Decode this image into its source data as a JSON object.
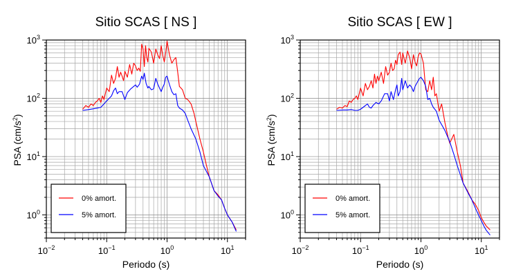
{
  "chart_data": [
    {
      "type": "line",
      "title": "Sitio SCAS [ NS ]",
      "xlabel": "Periodo (s)",
      "ylabel": "PSA (cm/s²)",
      "xscale": "log",
      "yscale": "log",
      "xlim": [
        0.01,
        20
      ],
      "ylim": [
        0.4,
        1000
      ],
      "x_ticks": [
        {
          "value": 0.01,
          "base": "10",
          "exp": "−2"
        },
        {
          "value": 0.1,
          "base": "10",
          "exp": "−1"
        },
        {
          "value": 1,
          "base": "10",
          "exp": "0"
        },
        {
          "value": 10,
          "base": "10",
          "exp": "1"
        }
      ],
      "y_ticks": [
        {
          "value": 1,
          "base": "10",
          "exp": "0"
        },
        {
          "value": 10,
          "base": "10",
          "exp": "1"
        },
        {
          "value": 100,
          "base": "10",
          "exp": "2"
        },
        {
          "value": 1000,
          "base": "10",
          "exp": "3"
        }
      ],
      "grid": true,
      "legend_position": "bottom-left",
      "series": [
        {
          "name": "0% amort.",
          "color": "#ff0000",
          "x": [
            0.04,
            0.045,
            0.05,
            0.055,
            0.06,
            0.065,
            0.07,
            0.075,
            0.08,
            0.085,
            0.09,
            0.095,
            0.1,
            0.11,
            0.12,
            0.13,
            0.14,
            0.15,
            0.16,
            0.17,
            0.18,
            0.19,
            0.2,
            0.22,
            0.24,
            0.26,
            0.28,
            0.3,
            0.32,
            0.34,
            0.36,
            0.38,
            0.4,
            0.42,
            0.44,
            0.46,
            0.48,
            0.5,
            0.55,
            0.6,
            0.65,
            0.7,
            0.75,
            0.8,
            0.85,
            0.9,
            0.95,
            1.0,
            1.05,
            1.1,
            1.2,
            1.3,
            1.4,
            1.5,
            1.6,
            1.7,
            1.8,
            2.0,
            2.2,
            2.5,
            2.8,
            3.0,
            3.5,
            4.0,
            4.5,
            5.0,
            6.0,
            7.0,
            8.0,
            9.0,
            10.0,
            12.0,
            14.0
          ],
          "y": [
            65,
            75,
            70,
            80,
            75,
            85,
            90,
            100,
            85,
            110,
            95,
            120,
            150,
            130,
            250,
            180,
            220,
            350,
            230,
            280,
            240,
            200,
            290,
            230,
            380,
            260,
            400,
            360,
            300,
            330,
            290,
            850,
            700,
            350,
            800,
            500,
            420,
            720,
            620,
            400,
            700,
            560,
            480,
            800,
            540,
            420,
            600,
            960,
            720,
            550,
            400,
            460,
            500,
            280,
            160,
            150,
            140,
            100,
            95,
            80,
            55,
            40,
            20,
            12,
            7,
            4.5,
            2.6,
            2.2,
            1.8,
            1.3,
            1.0,
            0.75,
            0.55
          ]
        },
        {
          "name": "5% amort.",
          "color": "#0000ff",
          "x": [
            0.04,
            0.05,
            0.06,
            0.07,
            0.08,
            0.09,
            0.1,
            0.11,
            0.12,
            0.13,
            0.14,
            0.15,
            0.16,
            0.18,
            0.2,
            0.22,
            0.25,
            0.28,
            0.3,
            0.32,
            0.35,
            0.38,
            0.4,
            0.42,
            0.45,
            0.48,
            0.5,
            0.55,
            0.6,
            0.65,
            0.7,
            0.75,
            0.8,
            0.85,
            0.9,
            0.95,
            1.0,
            1.05,
            1.1,
            1.2,
            1.3,
            1.4,
            1.5,
            1.6,
            1.8,
            2.0,
            2.2,
            2.5,
            3.0,
            3.5,
            4.0,
            5.0,
            6.0,
            7.0,
            8.0,
            9.0,
            10.0,
            12.0,
            14.0
          ],
          "y": [
            62,
            64,
            66,
            68,
            70,
            80,
            90,
            100,
            110,
            135,
            150,
            120,
            130,
            130,
            95,
            125,
            145,
            160,
            170,
            155,
            175,
            240,
            210,
            270,
            180,
            150,
            160,
            140,
            145,
            220,
            175,
            150,
            130,
            155,
            175,
            230,
            240,
            200,
            170,
            130,
            115,
            120,
            75,
            68,
            63,
            55,
            42,
            30,
            20,
            12,
            7,
            4.5,
            2.6,
            2.1,
            1.8,
            1.3,
            1.0,
            0.75,
            0.52
          ]
        }
      ]
    },
    {
      "type": "line",
      "title": "Sitio SCAS [ EW ]",
      "xlabel": "Periodo (s)",
      "ylabel": "PSA (cm/s²)",
      "xscale": "log",
      "yscale": "log",
      "xlim": [
        0.01,
        20
      ],
      "ylim": [
        0.4,
        1000
      ],
      "x_ticks": [
        {
          "value": 0.01,
          "base": "10",
          "exp": "−2"
        },
        {
          "value": 0.1,
          "base": "10",
          "exp": "−1"
        },
        {
          "value": 1,
          "base": "10",
          "exp": "0"
        },
        {
          "value": 10,
          "base": "10",
          "exp": "1"
        }
      ],
      "y_ticks": [
        {
          "value": 1,
          "base": "10",
          "exp": "0"
        },
        {
          "value": 10,
          "base": "10",
          "exp": "1"
        },
        {
          "value": 100,
          "base": "10",
          "exp": "2"
        },
        {
          "value": 1000,
          "base": "10",
          "exp": "3"
        }
      ],
      "grid": true,
      "legend_position": "bottom-left",
      "series": [
        {
          "name": "0% amort.",
          "color": "#ff0000",
          "x": [
            0.04,
            0.045,
            0.05,
            0.055,
            0.06,
            0.065,
            0.07,
            0.075,
            0.08,
            0.085,
            0.09,
            0.1,
            0.11,
            0.12,
            0.13,
            0.14,
            0.15,
            0.16,
            0.17,
            0.18,
            0.19,
            0.2,
            0.22,
            0.24,
            0.26,
            0.28,
            0.3,
            0.32,
            0.34,
            0.36,
            0.38,
            0.4,
            0.42,
            0.45,
            0.48,
            0.5,
            0.55,
            0.6,
            0.65,
            0.7,
            0.75,
            0.8,
            0.85,
            0.9,
            0.95,
            1.0,
            1.1,
            1.2,
            1.3,
            1.4,
            1.5,
            1.6,
            1.7,
            1.8,
            2.0,
            2.2,
            2.5,
            2.8,
            3.0,
            3.5,
            4.0,
            4.5,
            5.0,
            6.0,
            7.0,
            8.0,
            9.0,
            10.0,
            11.0,
            12.0,
            14.0
          ],
          "y": [
            65,
            70,
            68,
            75,
            72,
            90,
            85,
            95,
            100,
            110,
            95,
            150,
            110,
            180,
            140,
            160,
            200,
            150,
            260,
            180,
            240,
            200,
            280,
            180,
            350,
            250,
            280,
            400,
            300,
            320,
            450,
            380,
            560,
            620,
            380,
            600,
            400,
            650,
            500,
            320,
            560,
            420,
            360,
            520,
            600,
            580,
            400,
            140,
            130,
            200,
            140,
            230,
            110,
            120,
            60,
            80,
            38,
            22,
            17,
            24,
            12,
            7,
            3.5,
            2.5,
            1.8,
            1.5,
            1.2,
            0.9,
            0.75,
            0.65,
            0.55
          ]
        },
        {
          "name": "5% amort.",
          "color": "#0000ff",
          "x": [
            0.04,
            0.05,
            0.06,
            0.07,
            0.08,
            0.09,
            0.1,
            0.11,
            0.12,
            0.13,
            0.14,
            0.15,
            0.16,
            0.18,
            0.2,
            0.22,
            0.25,
            0.28,
            0.3,
            0.32,
            0.35,
            0.38,
            0.4,
            0.42,
            0.45,
            0.48,
            0.5,
            0.55,
            0.6,
            0.65,
            0.7,
            0.75,
            0.8,
            0.85,
            0.9,
            0.95,
            1.0,
            1.1,
            1.2,
            1.3,
            1.4,
            1.5,
            1.6,
            1.8,
            2.0,
            2.5,
            3.0,
            3.5,
            4.0,
            5.0,
            6.0,
            7.0,
            8.0,
            9.0,
            10.0,
            11.0,
            12.0,
            14.0
          ],
          "y": [
            62,
            63,
            63,
            64,
            62,
            62,
            65,
            70,
            75,
            80,
            70,
            68,
            75,
            85,
            80,
            90,
            120,
            120,
            90,
            130,
            95,
            140,
            170,
            110,
            130,
            220,
            140,
            200,
            150,
            170,
            155,
            130,
            160,
            180,
            200,
            220,
            230,
            200,
            160,
            95,
            100,
            80,
            70,
            60,
            42,
            28,
            18,
            11,
            7,
            3.5,
            2.4,
            1.8,
            1.3,
            1.0,
            0.8,
            0.65,
            0.55,
            0.45
          ]
        }
      ]
    }
  ]
}
